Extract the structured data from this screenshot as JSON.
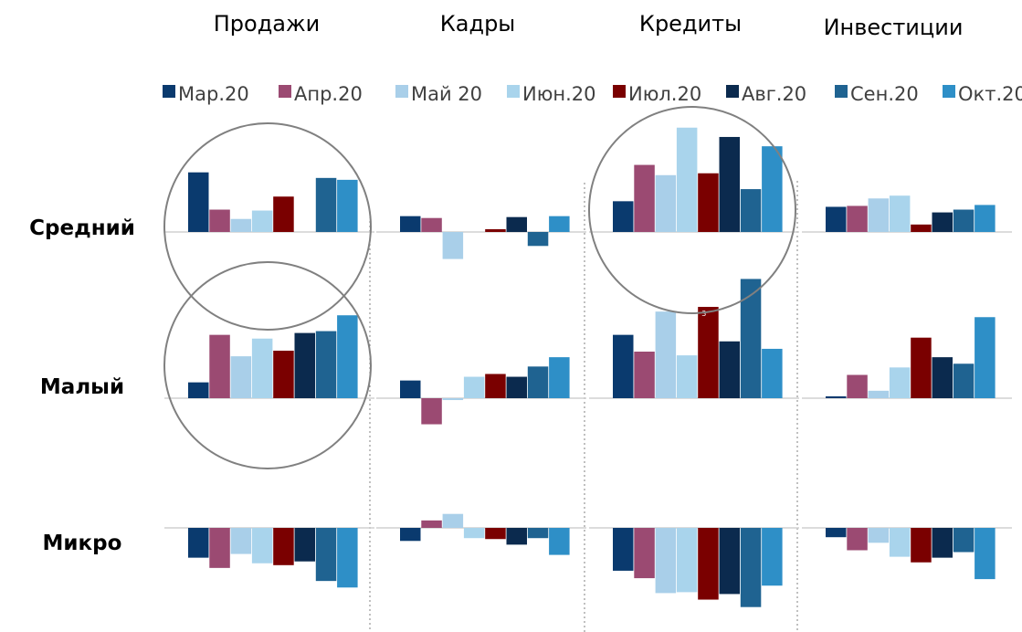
{
  "chart_data": {
    "type": "bar",
    "columns": [
      "Продажи",
      "Кадры",
      "Кредиты",
      "Инвестиции"
    ],
    "rows": [
      "Средний",
      "Малый",
      "Микро"
    ],
    "legend_position": "top",
    "grid": false,
    "series": [
      {
        "name": "Мар.20",
        "color": "#0a3a6e"
      },
      {
        "name": "Апр.20",
        "color": "#9b4a72"
      },
      {
        "name": "Май 20",
        "color": "#a9cfe9"
      },
      {
        "name": "Июн.20",
        "color": "#a9d4ec"
      },
      {
        "name": "Июл.20",
        "color": "#7a0000"
      },
      {
        "name": "Авг.20",
        "color": "#0b2a4e"
      },
      {
        "name": "Сен.20",
        "color": "#1f6391"
      },
      {
        "name": "Окт.20",
        "color": "#2e8fc7"
      }
    ],
    "panels": [
      {
        "row": "Средний",
        "column": "Продажи",
        "values": [
          6.4,
          2.4,
          1.4,
          2.3,
          3.8,
          0,
          5.8,
          5.6
        ]
      },
      {
        "row": "Средний",
        "column": "Кадры",
        "values": [
          1.7,
          1.5,
          -2.9,
          0,
          0.3,
          1.6,
          -1.5,
          1.7
        ]
      },
      {
        "row": "Средний",
        "column": "Кредиты",
        "values": [
          3.3,
          7.2,
          6.1,
          11.2,
          6.3,
          10.2,
          4.6,
          9.2
        ]
      },
      {
        "row": "Средний",
        "column": "Инвестиции",
        "values": [
          2.7,
          2.8,
          3.6,
          3.9,
          0.8,
          2.1,
          2.4,
          2.9
        ]
      },
      {
        "row": "Малый",
        "column": "Продажи",
        "values": [
          1.7,
          6.8,
          4.5,
          6.4,
          5.1,
          7.0,
          7.2,
          8.9
        ]
      },
      {
        "row": "Малый",
        "column": "Кадры",
        "values": [
          1.9,
          -2.8,
          -0.2,
          2.3,
          2.6,
          2.3,
          3.4,
          4.4
        ]
      },
      {
        "row": "Малый",
        "column": "Кредиты",
        "values": [
          6.8,
          5.0,
          9.3,
          4.6,
          9.8,
          6.1,
          12.8,
          5.3
        ]
      },
      {
        "row": "Малый",
        "column": "Инвестиции",
        "values": [
          0.2,
          2.5,
          0.8,
          3.3,
          6.5,
          4.4,
          3.7,
          8.7
        ]
      },
      {
        "row": "Микро",
        "column": "Продажи",
        "values": [
          -3.2,
          -4.3,
          -2.8,
          -3.8,
          -4.0,
          -3.6,
          -5.7,
          -6.4
        ]
      },
      {
        "row": "Микро",
        "column": "Кадры",
        "values": [
          -1.4,
          0.8,
          1.5,
          -1.1,
          -1.2,
          -1.8,
          -1.1,
          -2.9
        ]
      },
      {
        "row": "Микро",
        "column": "Кредиты",
        "values": [
          -4.6,
          -5.4,
          -7.0,
          -6.9,
          -7.7,
          -7.1,
          -8.5,
          -6.2
        ]
      },
      {
        "row": "Микро",
        "column": "Инвестиции",
        "values": [
          -1.0,
          -2.4,
          -1.6,
          -3.1,
          -3.7,
          -3.2,
          -2.6,
          -5.5
        ]
      }
    ],
    "annotations": [
      {
        "row": "Малый",
        "column": "Кредиты",
        "series": "Июл.20",
        "text": "3"
      }
    ],
    "highlights": [
      {
        "row": "Средний",
        "column": "Продажи"
      },
      {
        "row": "Малый",
        "column": "Продажи"
      },
      {
        "row": "Средний",
        "column": "Кредиты"
      }
    ]
  }
}
